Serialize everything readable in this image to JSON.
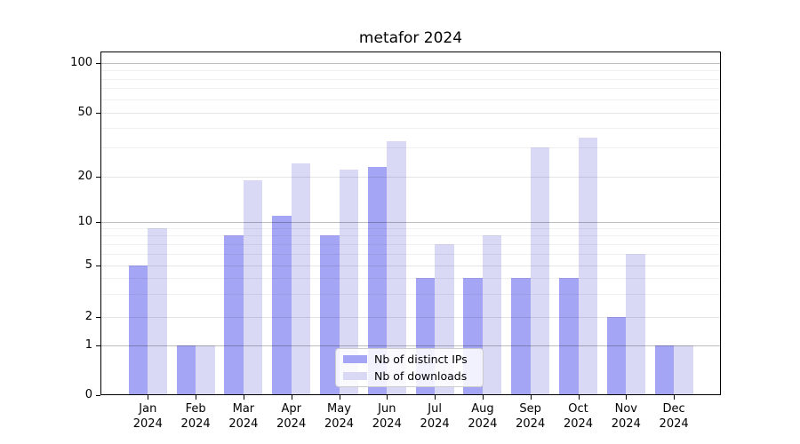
{
  "chart_data": {
    "type": "bar",
    "title": "metafor 2024",
    "categories": [
      "Jan 2024",
      "Feb 2024",
      "Mar 2024",
      "Apr 2024",
      "May 2024",
      "Jun 2024",
      "Jul 2024",
      "Aug 2024",
      "Sep 2024",
      "Oct 2024",
      "Nov 2024",
      "Dec 2024"
    ],
    "series": [
      {
        "name": "Nb of distinct IPs",
        "color": "#a5a5f5",
        "values": [
          5,
          1,
          8,
          11,
          8,
          23,
          4,
          4,
          4,
          4,
          2,
          1
        ]
      },
      {
        "name": "Nb of downloads",
        "color": "#d9d9f6",
        "values": [
          9,
          1,
          19,
          24,
          22,
          33,
          7,
          8,
          30,
          35,
          6,
          1
        ]
      }
    ],
    "y_axis": {
      "tick_labels": [
        "100",
        "50",
        "20",
        "10",
        "5",
        "2",
        "1",
        "0"
      ],
      "scale": "log-like",
      "grid": "horizontal major and minor"
    },
    "legend": {
      "position": "lower center"
    }
  }
}
